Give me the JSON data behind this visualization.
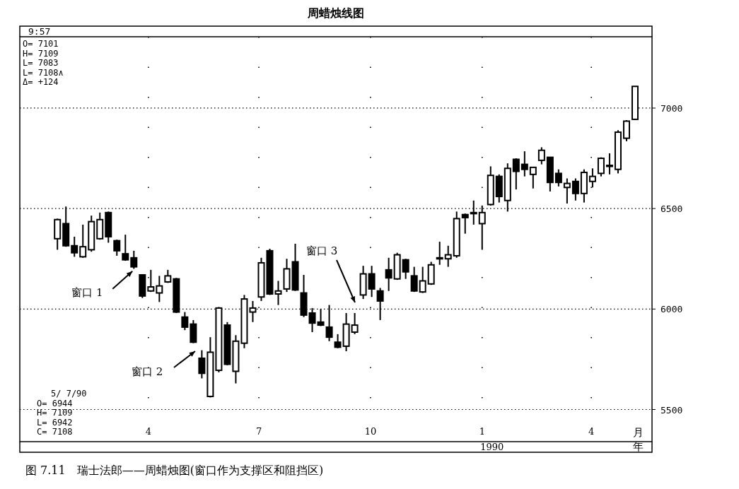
{
  "chart_data": {
    "type": "candlestick",
    "title": "周蜡烛线图",
    "x": [
      "1989-01-16",
      "1989-01-23",
      "1989-01-30",
      "1989-02-06",
      "1989-02-13",
      "1989-02-20",
      "1989-02-27",
      "1989-03-06",
      "1989-03-13",
      "1989-03-20",
      "1989-03-27",
      "1989-04-03",
      "1989-04-10",
      "1989-04-17",
      "1989-04-24",
      "1989-05-01",
      "1989-05-08",
      "1989-05-15",
      "1989-05-22",
      "1989-05-29",
      "1989-06-05",
      "1989-06-12",
      "1989-06-19",
      "1989-06-26",
      "1989-07-03",
      "1989-07-10",
      "1989-07-17",
      "1989-07-24",
      "1989-07-31",
      "1989-08-07",
      "1989-08-14",
      "1989-08-21",
      "1989-08-28",
      "1989-09-04",
      "1989-09-11",
      "1989-09-18",
      "1989-09-25",
      "1989-10-02",
      "1989-10-09",
      "1989-10-16",
      "1989-10-23",
      "1989-10-30",
      "1989-11-06",
      "1989-11-13",
      "1989-11-20",
      "1989-11-27",
      "1989-12-04",
      "1989-12-11",
      "1989-12-18",
      "1989-12-25",
      "1990-01-01",
      "1990-01-08",
      "1990-01-15",
      "1990-01-22",
      "1990-01-29",
      "1990-02-05",
      "1990-02-12",
      "1990-02-19",
      "1990-02-26",
      "1990-03-05",
      "1990-03-12",
      "1990-03-19",
      "1990-03-26",
      "1990-04-02",
      "1990-04-09",
      "1990-04-16",
      "1990-04-23",
      "1990-04-30",
      "1990-05-07"
    ],
    "ohlc": [
      [
        6350,
        6450,
        6295,
        6445
      ],
      [
        6425,
        6510,
        6310,
        6315
      ],
      [
        6315,
        6360,
        6260,
        6280
      ],
      [
        6260,
        6420,
        6255,
        6310
      ],
      [
        6295,
        6465,
        6285,
        6435
      ],
      [
        6350,
        6480,
        6345,
        6445
      ],
      [
        6480,
        6485,
        6330,
        6360
      ],
      [
        6340,
        6345,
        6265,
        6290
      ],
      [
        6275,
        6370,
        6240,
        6245
      ],
      [
        6255,
        6290,
        6200,
        6210
      ],
      [
        6170,
        6170,
        6055,
        6065
      ],
      [
        6090,
        6195,
        6085,
        6110
      ],
      [
        6080,
        6165,
        6035,
        6115
      ],
      [
        6135,
        6195,
        6130,
        6165
      ],
      [
        6150,
        6155,
        5980,
        5985
      ],
      [
        5960,
        5985,
        5895,
        5910
      ],
      [
        5925,
        5945,
        5830,
        5835
      ],
      [
        5755,
        5795,
        5655,
        5680
      ],
      [
        5565,
        5860,
        5560,
        5785
      ],
      [
        5695,
        6010,
        5685,
        6005
      ],
      [
        5920,
        5935,
        5720,
        5725
      ],
      [
        5690,
        5870,
        5630,
        5840
      ],
      [
        5830,
        6070,
        5805,
        6050
      ],
      [
        5985,
        6040,
        5935,
        6005
      ],
      [
        6060,
        6255,
        6040,
        6230
      ],
      [
        6290,
        6300,
        6070,
        6075
      ],
      [
        6075,
        6140,
        6020,
        6090
      ],
      [
        6100,
        6250,
        6085,
        6200
      ],
      [
        6235,
        6325,
        6090,
        6095
      ],
      [
        6080,
        6170,
        5960,
        5970
      ],
      [
        5980,
        6005,
        5885,
        5930
      ],
      [
        5935,
        6000,
        5915,
        5920
      ],
      [
        5910,
        6020,
        5840,
        5860
      ],
      [
        5835,
        5875,
        5805,
        5810
      ],
      [
        5815,
        5980,
        5790,
        5925
      ],
      [
        5885,
        5980,
        5875,
        5920
      ],
      [
        6070,
        6215,
        6050,
        6175
      ],
      [
        6175,
        6215,
        6060,
        6100
      ],
      [
        6090,
        6105,
        5945,
        6040
      ],
      [
        6195,
        6255,
        6090,
        6155
      ],
      [
        6150,
        6280,
        6145,
        6270
      ],
      [
        6245,
        6250,
        6150,
        6185
      ],
      [
        6165,
        6210,
        6085,
        6090
      ],
      [
        6085,
        6210,
        6080,
        6140
      ],
      [
        6125,
        6235,
        6120,
        6220
      ],
      [
        6255,
        6335,
        6220,
        6255
      ],
      [
        6250,
        6315,
        6210,
        6270
      ],
      [
        6265,
        6485,
        6255,
        6450
      ],
      [
        6470,
        6475,
        6375,
        6455
      ],
      [
        6480,
        6540,
        6420,
        6480
      ],
      [
        6425,
        6515,
        6295,
        6480
      ],
      [
        6520,
        6710,
        6515,
        6665
      ],
      [
        6660,
        6670,
        6530,
        6560
      ],
      [
        6540,
        6725,
        6485,
        6700
      ],
      [
        6745,
        6750,
        6595,
        6685
      ],
      [
        6720,
        6785,
        6660,
        6695
      ],
      [
        6670,
        6705,
        6600,
        6705
      ],
      [
        6740,
        6805,
        6720,
        6790
      ],
      [
        6755,
        6755,
        6585,
        6630
      ],
      [
        6675,
        6695,
        6610,
        6630
      ],
      [
        6605,
        6650,
        6525,
        6625
      ],
      [
        6635,
        6650,
        6540,
        6575
      ],
      [
        6575,
        6695,
        6530,
        6680
      ],
      [
        6635,
        6700,
        6605,
        6660
      ],
      [
        6675,
        6755,
        6660,
        6750
      ],
      [
        6715,
        6775,
        6670,
        6715
      ],
      [
        6695,
        6890,
        6675,
        6880
      ],
      [
        6850,
        6940,
        6835,
        6935
      ],
      [
        6944,
        7109,
        6942,
        7108
      ]
    ],
    "xlim": [
      "1988-12-16",
      "1990-05-21"
    ],
    "ylim": [
      5340,
      7355
    ],
    "xticks": [
      {
        "value": "1989-04-01",
        "label": "4"
      },
      {
        "value": "1989-07-01",
        "label": "7"
      },
      {
        "value": "1989-10-01",
        "label": "10"
      },
      {
        "value": "1990-01-01",
        "label": "1"
      },
      {
        "value": "1990-04-01",
        "label": "4"
      }
    ],
    "yticks": [
      5500,
      6000,
      6500,
      7000
    ],
    "grid": true,
    "annotations": [
      "9:57",
      "O= 7101\nH= 7109\nL= 7083\nL= 7108∧\nΔ= +124",
      "5/ 7/90\nO= 6944\nH= 7109\nL= 6942\nC= 7108",
      "1990",
      "月",
      "年",
      "图 7.11　瑞士法郎——周蜡烛图(窗口作为支撑区和阻挡区)",
      {
        "text": "窗口 1",
        "x": "1989-03-20",
        "y": 6195
      },
      "窗口 2",
      "窗口 3"
    ]
  }
}
